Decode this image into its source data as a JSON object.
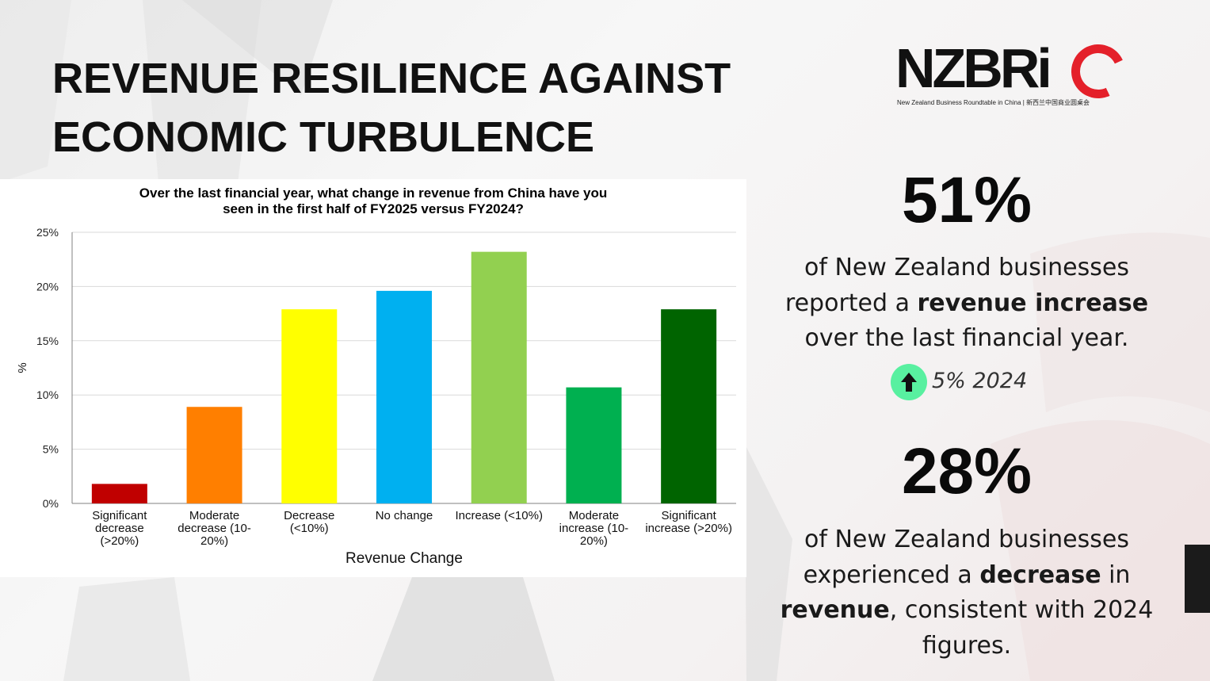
{
  "page": {
    "title_lines": [
      "REVENUE RESILIENCE AGAINST",
      "ECONOMIC TURBULENCE"
    ]
  },
  "logo": {
    "wordmark": "NZBRiC",
    "tagline": "New Zealand Business Roundtable in China  |  新西兰中国商业圆桌会"
  },
  "stats": [
    {
      "value": "51%",
      "text_parts": [
        {
          "text": "of New Zealand businesses reported a ",
          "bold": false
        },
        {
          "text": "revenue increase",
          "bold": true
        },
        {
          "text": " over the last financial year.",
          "bold": false
        }
      ],
      "trend": {
        "icon": "arrow-up-icon",
        "text": "5% 2024",
        "color": "#58f0a0"
      }
    },
    {
      "value": "28%",
      "text_parts": [
        {
          "text": "of New Zealand businesses experienced a ",
          "bold": false
        },
        {
          "text": "decrease",
          "bold": true
        },
        {
          "text": " in ",
          "bold": false
        },
        {
          "text": "revenue",
          "bold": true
        },
        {
          "text": ", consistent with 2024 figures.",
          "bold": false
        }
      ]
    }
  ],
  "chart_data": {
    "type": "bar",
    "title": "Over the last financial year, what change in revenue from China have you seen in the first half of FY2025 versus FY2024?",
    "title_lines": [
      "Over the last financial year, what change in revenue from China have you",
      "seen in the first half of FY2025 versus FY2024?"
    ],
    "xlabel": "Revenue Change",
    "ylabel": "%",
    "ylim": [
      0,
      25
    ],
    "yticks": [
      0,
      5,
      10,
      15,
      20,
      25
    ],
    "ytick_labels": [
      "0%",
      "5%",
      "10%",
      "15%",
      "20%",
      "25%"
    ],
    "grid": true,
    "legend": "none",
    "categories": [
      "Significant decrease (>20%)",
      "Moderate decrease (10-20%)",
      "Decrease (<10%)",
      "No change",
      "Increase (<10%)",
      "Moderate increase (10-20%)",
      "Significant increase (>20%)"
    ],
    "category_label_lines": [
      [
        "Significant",
        "decrease",
        "(>20%)"
      ],
      [
        "Moderate",
        "decrease (10-",
        "20%)"
      ],
      [
        "Decrease",
        "(<10%)"
      ],
      [
        "No change"
      ],
      [
        "Increase (<10%)"
      ],
      [
        "Moderate",
        "increase (10-",
        "20%)"
      ],
      [
        "Significant",
        "increase (>20%)"
      ]
    ],
    "values": [
      1.8,
      8.9,
      17.9,
      19.6,
      23.2,
      10.7,
      17.9
    ],
    "colors": [
      "#c00000",
      "#ff7f00",
      "#ffff00",
      "#00b0f0",
      "#92d050",
      "#00b050",
      "#006400"
    ]
  }
}
